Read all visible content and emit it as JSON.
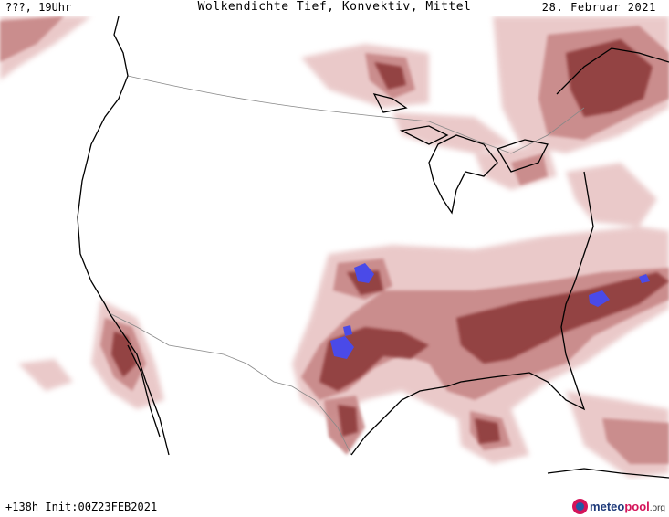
{
  "header": {
    "run": "???, 19Uhr",
    "title": "Wolkendichte   Tief, Konvektiv, Mittel",
    "date": "28. Februar 2021"
  },
  "footer": {
    "init": "+138h Init:00Z23FEB2021",
    "logo": {
      "part1": "meteo",
      "part2": "pool",
      "part3": ".org"
    }
  },
  "legend_colors": {
    "light_cloud": "#e8c4c4",
    "medium_cloud": "#c98a8a",
    "dense_cloud": "#8e3a3a",
    "convective": "#4a4ae8",
    "coastline": "#000000",
    "border": "#888888"
  }
}
